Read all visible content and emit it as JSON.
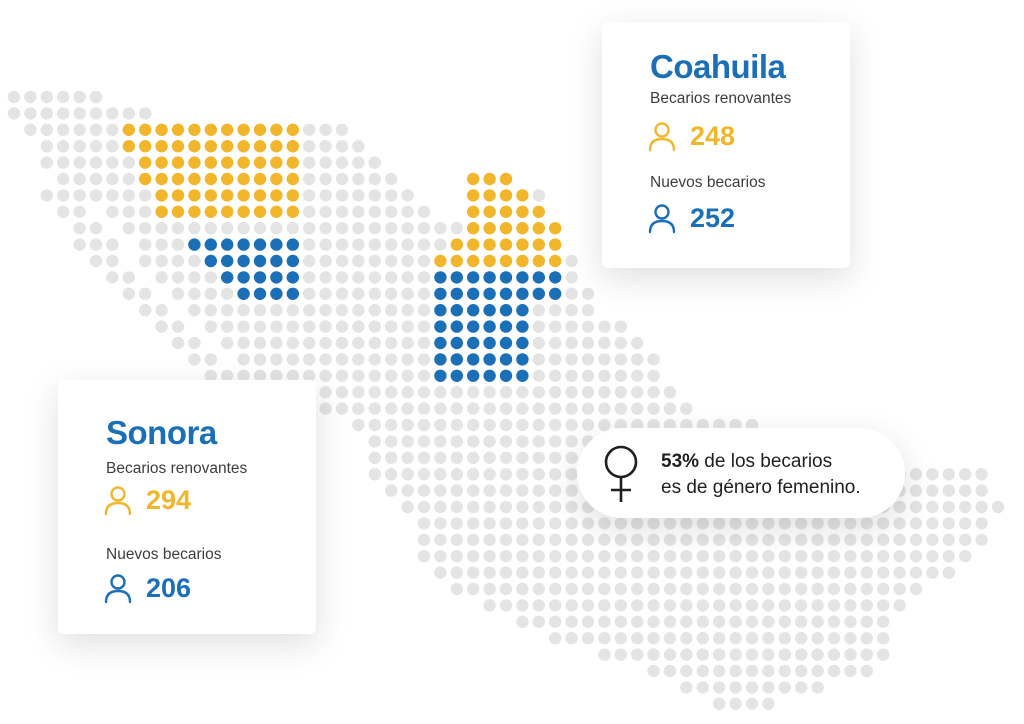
{
  "colors": {
    "yellow": "#f2b62d",
    "blue": "#1a6fb7",
    "grey_dot": "#e4e4e4",
    "state_title": "#1a6fb7"
  },
  "states": {
    "coahuila": {
      "name": "Coahuila",
      "renewing_label": "Becarios renovantes",
      "renewing_value": "248",
      "new_label": "Nuevos becarios",
      "new_value": "252"
    },
    "sonora": {
      "name": "Sonora",
      "renewing_label": "Becarios renovantes",
      "renewing_value": "294",
      "new_label": "Nuevos becarios",
      "new_value": "206"
    }
  },
  "female_stat": {
    "percent": "53%",
    "line1_rest": " de los becarios",
    "line2": "es de género femenino."
  },
  "icons": {
    "person_yellow": "person-outline-icon",
    "person_blue": "person-outline-icon",
    "female": "female-symbol-icon"
  }
}
